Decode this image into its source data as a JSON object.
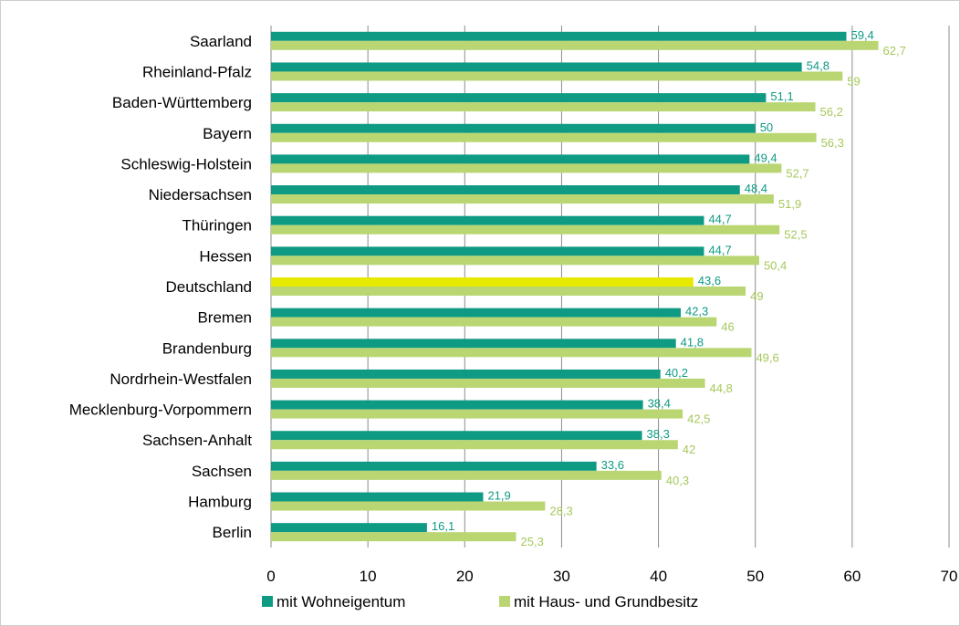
{
  "chart_data": {
    "type": "bar",
    "orientation": "horizontal",
    "categories": [
      "Saarland",
      "Rheinland-Pfalz",
      "Baden-Württemberg",
      "Bayern",
      "Schleswig-Holstein",
      "Niedersachsen",
      "Thüringen",
      "Hessen",
      "Deutschland",
      "Bremen",
      "Brandenburg",
      "Nordrhein-Westfalen",
      "Mecklenburg-Vorpommern",
      "Sachsen-Anhalt",
      "Sachsen",
      "Hamburg",
      "Berlin"
    ],
    "series": [
      {
        "name": "mit Wohneigentum",
        "color": "#0f9a84",
        "values": [
          59.4,
          54.8,
          51.1,
          50,
          49.4,
          48.4,
          44.7,
          44.7,
          43.6,
          42.3,
          41.8,
          40.2,
          38.4,
          38.3,
          33.6,
          21.9,
          16.1
        ],
        "labels": [
          "59,4",
          "54,8",
          "51,1",
          "50",
          "49,4",
          "48,4",
          "44,7",
          "44,7",
          "43,6",
          "42,3",
          "41,8",
          "40,2",
          "38,4",
          "38,3",
          "33,6",
          "21,9",
          "16,1"
        ],
        "label_color": "#0f9a84"
      },
      {
        "name": "mit Haus- und Grundbesitz",
        "color": "#bad673",
        "values": [
          62.7,
          59,
          56.2,
          56.3,
          52.7,
          51.9,
          52.5,
          50.4,
          49,
          46,
          49.6,
          44.8,
          42.5,
          42,
          40.3,
          28.3,
          25.3
        ],
        "labels": [
          "62,7",
          "59",
          "56,2",
          "56,3",
          "52,7",
          "51,9",
          "52,5",
          "50,4",
          "49",
          "46",
          "49,6",
          "44,8",
          "42,5",
          "42",
          "40,3",
          "28,3",
          "25,3"
        ],
        "label_color": "#a6c85b"
      }
    ],
    "highlight": {
      "category": "Deutschland",
      "series": "mit Wohneigentum",
      "color": "#e6ea00"
    },
    "xlim": [
      0,
      70
    ],
    "xticks": [
      0,
      10,
      20,
      30,
      40,
      50,
      60,
      70
    ],
    "xtick_labels": [
      "0",
      "10",
      "20",
      "30",
      "40",
      "50",
      "60",
      "70"
    ],
    "grid": true,
    "legend_position": "bottom"
  }
}
